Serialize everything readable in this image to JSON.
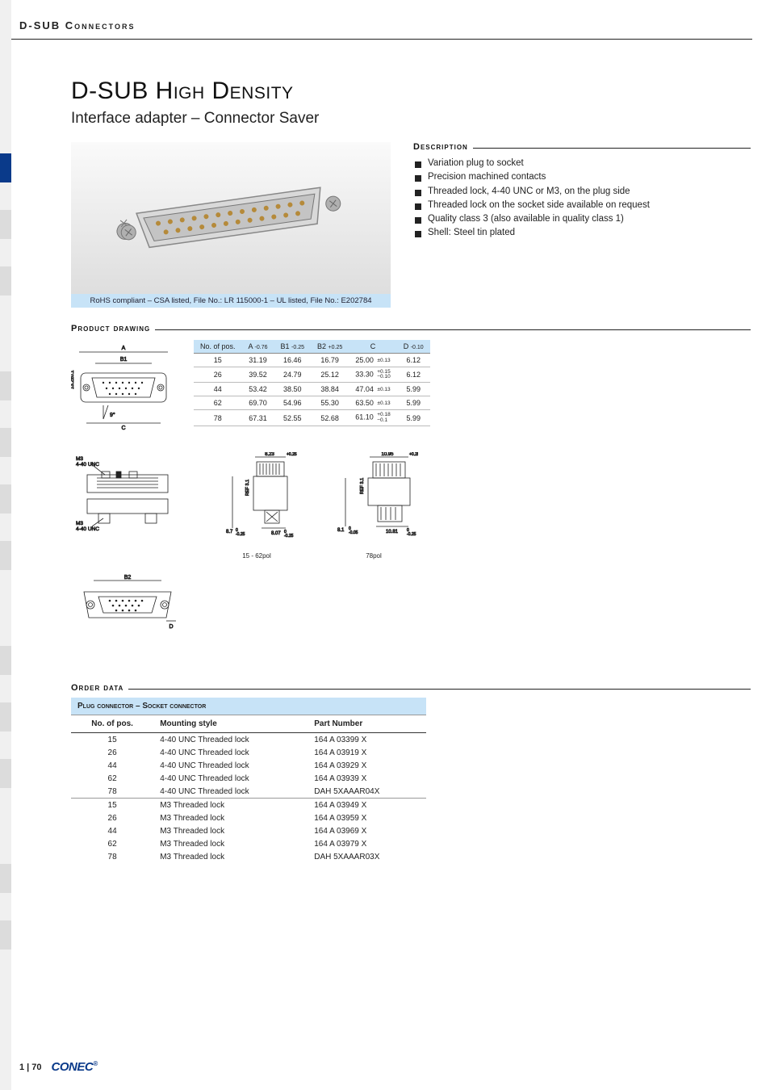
{
  "page": {
    "header": "D-SUB Connectors",
    "title": "D-SUB High Density",
    "subtitle": "Interface adapter – Connector Saver",
    "caption": "RoHS compliant – CSA listed, File No.: LR 115000-1 – UL listed, File No.: E202784",
    "footer_page": "1 | 70",
    "logo": "CONEC",
    "logo_reg": "®"
  },
  "colors": {
    "accent_blue": "#0a3a8a",
    "light_blue": "#c7e3f7",
    "grey_rail": "#f0f0f0",
    "text": "#222222"
  },
  "sections": {
    "description": "Description",
    "product_drawing": "Product drawing",
    "order_data": "Order data"
  },
  "description_items": [
    "Variation plug to socket",
    "Precision machined contacts",
    "Threaded lock, 4-40 UNC or M3, on the plug side",
    "Threaded lock on the socket side available on request",
    "Quality class 3 (also available in quality class 1)",
    "Shell: Steel tin plated"
  ],
  "dims_table": {
    "headers": [
      {
        "main": "No. of pos.",
        "sub": ""
      },
      {
        "main": "A",
        "sub": "-0.76"
      },
      {
        "main": "B1",
        "sub": "-0.25"
      },
      {
        "main": "B2",
        "sub": "+0.25"
      },
      {
        "main": "C",
        "sub": ""
      },
      {
        "main": "D",
        "sub": "-0.10"
      }
    ],
    "rows": [
      {
        "n": "15",
        "a": "31.19",
        "b1": "16.46",
        "b2": "16.79",
        "c": "25.00",
        "ctol": "±0.13",
        "d": "6.12"
      },
      {
        "n": "26",
        "a": "39.52",
        "b1": "24.79",
        "b2": "25.12",
        "c": "33.30",
        "ctol": "+0.15 −0.10",
        "d": "6.12"
      },
      {
        "n": "44",
        "a": "53.42",
        "b1": "38.50",
        "b2": "38.84",
        "c": "47.04",
        "ctol": "±0.13",
        "d": "5.99"
      },
      {
        "n": "62",
        "a": "69.70",
        "b1": "54.96",
        "b2": "55.30",
        "c": "63.50",
        "ctol": "±0.13",
        "d": "5.99"
      },
      {
        "n": "78",
        "a": "67.31",
        "b1": "52.55",
        "b2": "52.68",
        "c": "61.10",
        "ctol": "+0.18 −0.1",
        "d": "5.99"
      }
    ]
  },
  "drawing_labels": {
    "d1_a": "A",
    "d1_b1": "B1",
    "d1_h": "13.2±0.1",
    "d1_ang": "9°",
    "d1_c": "C",
    "d2_top": "M3\n4-40 UNC",
    "d2_bot": "M3\n4-40 UNC",
    "d3_top": "8.23+0.25 0",
    "d3_mid": "REF 3.1",
    "d3_bot1": "8.07 0 -0.25",
    "d3_bot2": "8.7 0 -0.25",
    "d3_cap": "15 - 62pol",
    "d4_top": "10.95+0.25 0",
    "d4_mid": "REF 3.1",
    "d4_bot1": "10.81 0 -0.25",
    "d4_bot2": "8.1 0 -0.05",
    "d4_cap": "78pol",
    "d5_b2": "B2",
    "d5_d": "D"
  },
  "order_table": {
    "group_header": "Plug connector – Socket connector",
    "columns": [
      "No. of pos.",
      "Mounting style",
      "Part Number"
    ],
    "rows": [
      {
        "n": "15",
        "m": "4-40 UNC Threaded lock",
        "p": "164 A 03399 X",
        "sep": false
      },
      {
        "n": "26",
        "m": "4-40 UNC Threaded lock",
        "p": "164 A 03919 X",
        "sep": false
      },
      {
        "n": "44",
        "m": "4-40 UNC Threaded lock",
        "p": "164 A 03929 X",
        "sep": false
      },
      {
        "n": "62",
        "m": "4-40 UNC Threaded lock",
        "p": "164 A 03939 X",
        "sep": false
      },
      {
        "n": "78",
        "m": "4-40 UNC Threaded lock",
        "p": "DAH 5XAAAR04X",
        "sep": false
      },
      {
        "n": "15",
        "m": "M3 Threaded lock",
        "p": "164 A 03949 X",
        "sep": true
      },
      {
        "n": "26",
        "m": "M3 Threaded lock",
        "p": "164 A 03959 X",
        "sep": false
      },
      {
        "n": "44",
        "m": "M3 Threaded lock",
        "p": "164 A 03969 X",
        "sep": false
      },
      {
        "n": "62",
        "m": "M3 Threaded lock",
        "p": "164 A 03979 X",
        "sep": false
      },
      {
        "n": "78",
        "m": "M3 Threaded lock",
        "p": "DAH 5XAAAR03X",
        "sep": false
      }
    ]
  }
}
